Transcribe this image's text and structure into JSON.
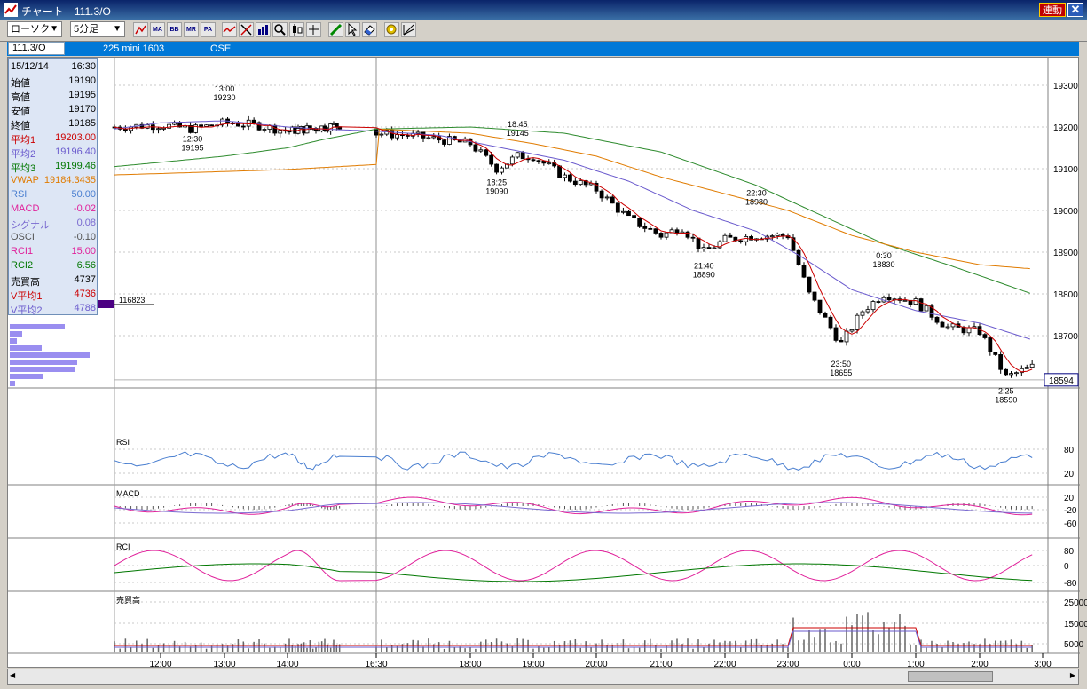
{
  "window": {
    "title": "チャート　111.3/O",
    "live_label": "連動",
    "close_label": "✕"
  },
  "toolbar": {
    "chart_type": "ローソク",
    "interval": "5分足",
    "buttons": [
      "MA",
      "BB",
      "MR",
      "PA"
    ]
  },
  "info": {
    "symbol_code": "111.3/O",
    "symbol_name": "225 mini 1603",
    "exchange": "OSE"
  },
  "datapanel": {
    "date": "15/12/14",
    "time": "16:30",
    "rows": [
      {
        "label": "始値",
        "value": "19190",
        "color": "#000000"
      },
      {
        "label": "高値",
        "value": "19195",
        "color": "#000000"
      },
      {
        "label": "安値",
        "value": "19170",
        "color": "#000000"
      },
      {
        "label": "終値",
        "value": "19185",
        "color": "#000000"
      },
      {
        "label": "平均1",
        "value": "19203.00",
        "color": "#cc0000"
      },
      {
        "label": "平均2",
        "value": "19196.40",
        "color": "#6a5acd"
      },
      {
        "label": "平均3",
        "value": "19199.46",
        "color": "#007700"
      },
      {
        "label": "VWAP",
        "value": "19184.3435",
        "color": "#e07b00"
      },
      {
        "label": "RSI",
        "value": "50.00",
        "color": "#4a7fd0"
      },
      {
        "label": "MACD",
        "value": "-0.02",
        "color": "#e0209a"
      },
      {
        "label": "シグナル",
        "value": "0.08",
        "color": "#7a6ad0"
      },
      {
        "label": "OSCI",
        "value": "-0.10",
        "color": "#555555"
      },
      {
        "label": "RCI1",
        "value": "15.00",
        "color": "#e0209a"
      },
      {
        "label": "RCI2",
        "value": "6.56",
        "color": "#007700"
      },
      {
        "label": "売買高",
        "value": "4737",
        "color": "#000000"
      },
      {
        "label": "V平均1",
        "value": "4736",
        "color": "#cc0000"
      },
      {
        "label": "V平均2",
        "value": "4788",
        "color": "#6a5acd"
      }
    ]
  },
  "volume_profile": {
    "label": "116823"
  },
  "price_axis": {
    "ticks": [
      "19300",
      "19200",
      "19100",
      "19000",
      "18900",
      "18800",
      "18700"
    ],
    "ticks_values": [
      19300,
      19200,
      19100,
      19000,
      18900,
      18800,
      18700
    ],
    "current_price": "18594",
    "current_value": 18594
  },
  "annotations": [
    {
      "time": "13:00",
      "price": "19230",
      "t": 13.0,
      "v": 19230,
      "pos": "above"
    },
    {
      "time": "12:30",
      "price": "19195",
      "t": 12.5,
      "v": 19195,
      "pos": "below"
    },
    {
      "time": "18:45",
      "price": "19145",
      "t": 18.75,
      "v": 19145,
      "pos": "above"
    },
    {
      "time": "18:25",
      "price": "19090",
      "t": 18.42,
      "v": 19090,
      "pos": "below"
    },
    {
      "time": "22:30",
      "price": "18980",
      "t": 22.5,
      "v": 18980,
      "pos": "above"
    },
    {
      "time": "21:40",
      "price": "18890",
      "t": 21.67,
      "v": 18890,
      "pos": "below"
    },
    {
      "time": "0:30",
      "price": "18830",
      "t": 24.5,
      "v": 18830,
      "pos": "above"
    },
    {
      "time": "23:50",
      "price": "18655",
      "t": 23.83,
      "v": 18655,
      "pos": "below"
    },
    {
      "time": "2:25",
      "price": "18590",
      "t": 26.42,
      "v": 18590,
      "pos": "below"
    }
  ],
  "time_axis": {
    "labels": [
      {
        "text": "12:00",
        "t": 12
      },
      {
        "text": "13:00",
        "t": 13
      },
      {
        "text": "14:00",
        "t": 14
      },
      {
        "text": "16:30",
        "t": 16.5
      },
      {
        "text": "18:00",
        "t": 18
      },
      {
        "text": "19:00",
        "t": 19
      },
      {
        "text": "20:00",
        "t": 20
      },
      {
        "text": "21:00",
        "t": 21
      },
      {
        "text": "22:00",
        "t": 22
      },
      {
        "text": "23:00",
        "t": 23
      },
      {
        "text": "0:00",
        "t": 24
      },
      {
        "text": "1:00",
        "t": 25
      },
      {
        "text": "2:00",
        "t": 26
      },
      {
        "text": "3:00",
        "t": 27
      }
    ]
  },
  "panes": {
    "rsi": {
      "label": "RSI",
      "ticks": [
        "80",
        "20"
      ]
    },
    "macd": {
      "label": "MACD",
      "ticks": [
        "20",
        "-20",
        "-60"
      ]
    },
    "rci": {
      "label": "RCI",
      "ticks": [
        "80",
        "0",
        "-80"
      ]
    },
    "volume": {
      "label": "売買高",
      "ticks": [
        "25000",
        "15000",
        "5000"
      ]
    }
  },
  "chart_data": {
    "type": "candlestick",
    "price_keypoints": [
      [
        11.3,
        19200
      ],
      [
        12.0,
        19205
      ],
      [
        12.5,
        19195
      ],
      [
        13.0,
        19210
      ],
      [
        13.5,
        19205
      ],
      [
        14.0,
        19190
      ],
      [
        14.5,
        19195
      ],
      [
        15.0,
        19200
      ],
      [
        15.5,
        19205
      ],
      [
        16.5,
        19185
      ],
      [
        17.0,
        19180
      ],
      [
        17.5,
        19170
      ],
      [
        18.0,
        19160
      ],
      [
        18.42,
        19100
      ],
      [
        18.75,
        19130
      ],
      [
        19.0,
        19130
      ],
      [
        19.5,
        19080
      ],
      [
        20.0,
        19050
      ],
      [
        20.5,
        18980
      ],
      [
        21.0,
        18940
      ],
      [
        21.33,
        18960
      ],
      [
        21.67,
        18900
      ],
      [
        22.0,
        18930
      ],
      [
        22.5,
        18940
      ],
      [
        23.0,
        18940
      ],
      [
        23.33,
        18800
      ],
      [
        23.83,
        18680
      ],
      [
        24.17,
        18760
      ],
      [
        24.5,
        18800
      ],
      [
        25.0,
        18780
      ],
      [
        25.5,
        18720
      ],
      [
        26.0,
        18710
      ],
      [
        26.42,
        18600
      ],
      [
        26.83,
        18625
      ]
    ],
    "moving_average_keypoints": [
      [
        11.3,
        19195
      ],
      [
        12,
        19210
      ],
      [
        13,
        19215
      ],
      [
        14,
        19200
      ],
      [
        15,
        19195
      ],
      [
        16.5,
        19190
      ],
      [
        17.5,
        19180
      ],
      [
        18.5,
        19150
      ],
      [
        19.5,
        19120
      ],
      [
        20.5,
        19070
      ],
      [
        21.5,
        19000
      ],
      [
        22.5,
        18950
      ],
      [
        23.2,
        18890
      ],
      [
        24,
        18810
      ],
      [
        25,
        18760
      ],
      [
        26,
        18730
      ],
      [
        26.83,
        18690
      ]
    ],
    "vwap_keypoints": [
      [
        11.3,
        19085
      ],
      [
        16.5,
        19110
      ],
      [
        16.55,
        19195
      ],
      [
        18,
        19185
      ],
      [
        19,
        19160
      ],
      [
        20,
        19130
      ],
      [
        21,
        19080
      ],
      [
        22,
        19040
      ],
      [
        23,
        19000
      ],
      [
        24,
        18940
      ],
      [
        25,
        18900
      ],
      [
        26,
        18870
      ],
      [
        26.83,
        18860
      ]
    ],
    "long_ma_keypoints": [
      [
        11.3,
        19105
      ],
      [
        13,
        19130
      ],
      [
        15,
        19170
      ],
      [
        16.5,
        19195
      ],
      [
        18,
        19200
      ],
      [
        19.5,
        19185
      ],
      [
        21,
        19140
      ],
      [
        22.5,
        19060
      ],
      [
        23.5,
        18990
      ],
      [
        24.5,
        18920
      ],
      [
        25.5,
        18870
      ],
      [
        26.83,
        18800
      ]
    ]
  }
}
